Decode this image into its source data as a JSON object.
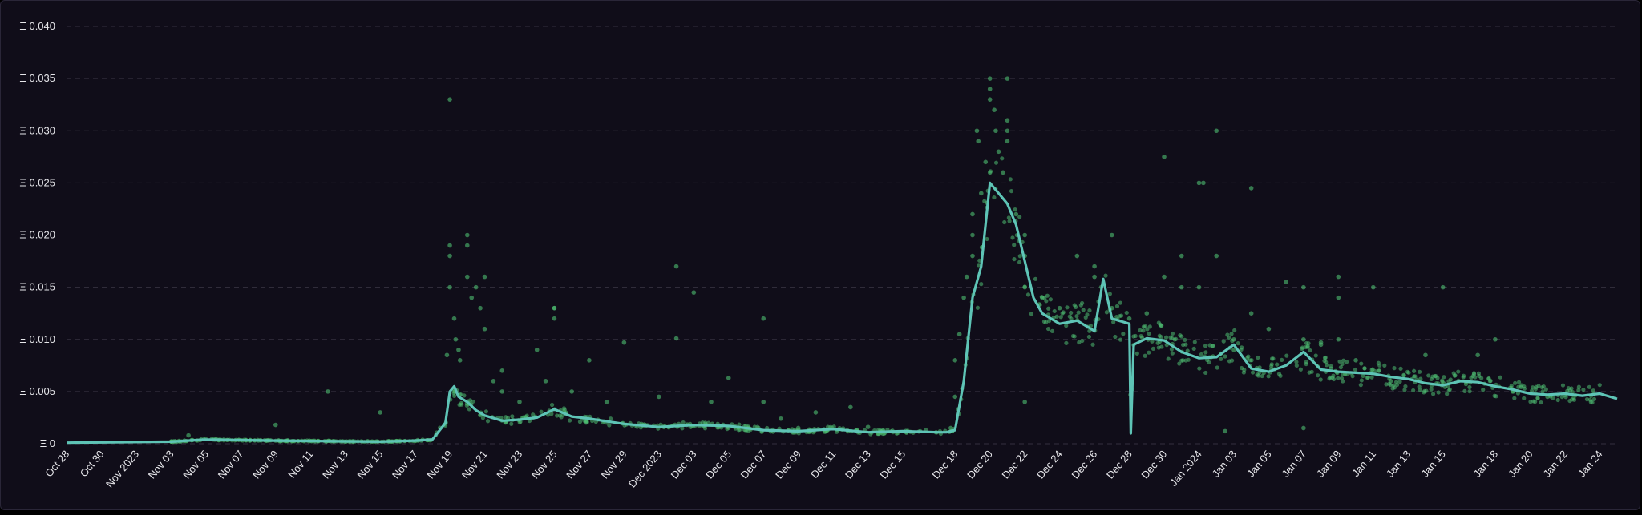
{
  "colors": {
    "background": "#100d19",
    "grid": "#34303f",
    "line": "#5ec4b6",
    "points": "#4fbf72",
    "text": "#e6e6ea"
  },
  "chart_data": {
    "type": "scatter",
    "title": "",
    "xlabel": "",
    "ylabel": "",
    "x_range": [
      "2023-10-28",
      "2024-01-25"
    ],
    "ylim": [
      0,
      0.04
    ],
    "y_unit_prefix": "Ξ",
    "grid": "horizontal dashed",
    "y_ticks": [
      "Ξ 0",
      "Ξ 0.005",
      "Ξ 0.010",
      "Ξ 0.015",
      "Ξ 0.020",
      "Ξ 0.025",
      "Ξ 0.030",
      "Ξ 0.035",
      "Ξ 0.040"
    ],
    "x_ticks": [
      {
        "label": "Oct 28",
        "date": "2023-10-28"
      },
      {
        "label": "Oct 30",
        "date": "2023-10-30"
      },
      {
        "label": "Nov 2023",
        "date": "2023-11-01"
      },
      {
        "label": "Nov 03",
        "date": "2023-11-03"
      },
      {
        "label": "Nov 05",
        "date": "2023-11-05"
      },
      {
        "label": "Nov 07",
        "date": "2023-11-07"
      },
      {
        "label": "Nov 09",
        "date": "2023-11-09"
      },
      {
        "label": "Nov 11",
        "date": "2023-11-11"
      },
      {
        "label": "Nov 13",
        "date": "2023-11-13"
      },
      {
        "label": "Nov 15",
        "date": "2023-11-15"
      },
      {
        "label": "Nov 17",
        "date": "2023-11-17"
      },
      {
        "label": "Nov 19",
        "date": "2023-11-19"
      },
      {
        "label": "Nov 21",
        "date": "2023-11-21"
      },
      {
        "label": "Nov 23",
        "date": "2023-11-23"
      },
      {
        "label": "Nov 25",
        "date": "2023-11-25"
      },
      {
        "label": "Nov 27",
        "date": "2023-11-27"
      },
      {
        "label": "Nov 29",
        "date": "2023-11-29"
      },
      {
        "label": "Dec 2023",
        "date": "2023-12-01"
      },
      {
        "label": "Dec 03",
        "date": "2023-12-03"
      },
      {
        "label": "Dec 05",
        "date": "2023-12-05"
      },
      {
        "label": "Dec 07",
        "date": "2023-12-07"
      },
      {
        "label": "Dec 09",
        "date": "2023-12-09"
      },
      {
        "label": "Dec 11",
        "date": "2023-12-11"
      },
      {
        "label": "Dec 13",
        "date": "2023-12-13"
      },
      {
        "label": "Dec 15",
        "date": "2023-12-15"
      },
      {
        "label": "Dec 18",
        "date": "2023-12-18"
      },
      {
        "label": "Dec 20",
        "date": "2023-12-20"
      },
      {
        "label": "Dec 22",
        "date": "2023-12-22"
      },
      {
        "label": "Dec 24",
        "date": "2023-12-24"
      },
      {
        "label": "Dec 26",
        "date": "2023-12-26"
      },
      {
        "label": "Dec 28",
        "date": "2023-12-28"
      },
      {
        "label": "Dec 30",
        "date": "2023-12-30"
      },
      {
        "label": "Jan 2024",
        "date": "2024-01-01"
      },
      {
        "label": "Jan 03",
        "date": "2024-01-03"
      },
      {
        "label": "Jan 05",
        "date": "2024-01-05"
      },
      {
        "label": "Jan 07",
        "date": "2024-01-07"
      },
      {
        "label": "Jan 09",
        "date": "2024-01-09"
      },
      {
        "label": "Jan 11",
        "date": "2024-01-11"
      },
      {
        "label": "Jan 13",
        "date": "2024-01-13"
      },
      {
        "label": "Jan 15",
        "date": "2024-01-15"
      },
      {
        "label": "Jan 18",
        "date": "2024-01-18"
      },
      {
        "label": "Jan 20",
        "date": "2024-01-20"
      },
      {
        "label": "Jan 22",
        "date": "2024-01-22"
      },
      {
        "label": "Jan 24",
        "date": "2024-01-24"
      }
    ],
    "series": [
      {
        "type": "line",
        "x": [
          "2023-10-28",
          "2023-11-03",
          "2023-11-05",
          "2023-11-09",
          "2023-11-15",
          "2023-11-17",
          "2023-11-18",
          "2023-11-18T18:00",
          "2023-11-19",
          "2023-11-19T06:00",
          "2023-11-19T12:00",
          "2023-11-20",
          "2023-11-20T12:00",
          "2023-11-21",
          "2023-11-22",
          "2023-11-23",
          "2023-11-24",
          "2023-11-25",
          "2023-11-26",
          "2023-11-27",
          "2023-11-29",
          "2023-12-01",
          "2023-12-03",
          "2023-12-05",
          "2023-12-07",
          "2023-12-09",
          "2023-12-11",
          "2023-12-13",
          "2023-12-15",
          "2023-12-17",
          "2023-12-17T12:00",
          "2023-12-18",
          "2023-12-18T12:00",
          "2023-12-19",
          "2023-12-19T12:00",
          "2023-12-20",
          "2023-12-20T12:00",
          "2023-12-21",
          "2023-12-21T12:00",
          "2023-12-22",
          "2023-12-22T12:00",
          "2023-12-23",
          "2023-12-24",
          "2023-12-25",
          "2023-12-26",
          "2023-12-26T12:00",
          "2023-12-27",
          "2023-12-28",
          "2023-12-28T02:00",
          "2023-12-28T06:00",
          "2023-12-29",
          "2023-12-30",
          "2023-12-31",
          "2024-01-01",
          "2024-01-02",
          "2024-01-03",
          "2024-01-04",
          "2024-01-05",
          "2024-01-06",
          "2024-01-07",
          "2024-01-08",
          "2024-01-09",
          "2024-01-10",
          "2024-01-11",
          "2024-01-12",
          "2024-01-13",
          "2024-01-14",
          "2024-01-15",
          "2024-01-16",
          "2024-01-17",
          "2024-01-18",
          "2024-01-19",
          "2024-01-20",
          "2024-01-21",
          "2024-01-22",
          "2024-01-23",
          "2024-01-24",
          "2024-01-25"
        ],
        "y": [
          0.0001,
          0.0002,
          0.0004,
          0.0003,
          0.0002,
          0.0003,
          0.0004,
          0.002,
          0.005,
          0.0055,
          0.0045,
          0.004,
          0.0032,
          0.0027,
          0.0022,
          0.0023,
          0.0025,
          0.0033,
          0.0026,
          0.0024,
          0.0019,
          0.0016,
          0.0018,
          0.0017,
          0.0013,
          0.0012,
          0.0014,
          0.0011,
          0.0012,
          0.0011,
          0.0011,
          0.0013,
          0.006,
          0.014,
          0.017,
          0.025,
          0.024,
          0.023,
          0.021,
          0.0175,
          0.014,
          0.0125,
          0.0115,
          0.0118,
          0.0108,
          0.0158,
          0.012,
          0.0115,
          0.001,
          0.0095,
          0.0101,
          0.0099,
          0.0088,
          0.0082,
          0.0083,
          0.0095,
          0.0072,
          0.0069,
          0.0075,
          0.0088,
          0.0071,
          0.0069,
          0.0068,
          0.0067,
          0.0064,
          0.0062,
          0.0058,
          0.0056,
          0.006,
          0.0059,
          0.0055,
          0.0052,
          0.0048,
          0.0047,
          0.0048,
          0.0046,
          0.0048,
          0.0043
        ]
      },
      {
        "type": "scatter",
        "points": [
          [
            "2023-11-04",
            0.0008
          ],
          [
            "2023-11-09",
            0.0018
          ],
          [
            "2023-11-12",
            0.005
          ],
          [
            "2023-11-15",
            0.003
          ],
          [
            "2023-11-18T20:00",
            0.0085
          ],
          [
            "2023-11-19",
            0.033
          ],
          [
            "2023-11-19",
            0.018
          ],
          [
            "2023-11-19",
            0.019
          ],
          [
            "2023-11-19",
            0.015
          ],
          [
            "2023-11-19T06:00",
            0.012
          ],
          [
            "2023-11-19T08:00",
            0.01
          ],
          [
            "2023-11-19T12:00",
            0.009
          ],
          [
            "2023-11-19T14:00",
            0.008
          ],
          [
            "2023-11-20",
            0.02
          ],
          [
            "2023-11-20",
            0.019
          ],
          [
            "2023-11-20",
            0.016
          ],
          [
            "2023-11-20T06:00",
            0.014
          ],
          [
            "2023-11-20T12:00",
            0.015
          ],
          [
            "2023-11-20T18:00",
            0.013
          ],
          [
            "2023-11-21",
            0.016
          ],
          [
            "2023-11-21",
            0.011
          ],
          [
            "2023-11-21T12:00",
            0.006
          ],
          [
            "2023-11-22",
            0.007
          ],
          [
            "2023-11-22",
            0.005
          ],
          [
            "2023-11-23",
            0.004
          ],
          [
            "2023-11-24",
            0.009
          ],
          [
            "2023-11-24T12:00",
            0.006
          ],
          [
            "2023-11-25",
            0.013
          ],
          [
            "2023-11-25",
            0.012
          ],
          [
            "2023-11-25",
            0.013
          ],
          [
            "2023-11-26",
            0.005
          ],
          [
            "2023-11-27",
            0.008
          ],
          [
            "2023-11-28",
            0.004
          ],
          [
            "2023-11-29",
            0.0097
          ],
          [
            "2023-12-01",
            0.0045
          ],
          [
            "2023-12-02",
            0.0101
          ],
          [
            "2023-12-02",
            0.017
          ],
          [
            "2023-12-03",
            0.0145
          ],
          [
            "2023-12-04",
            0.004
          ],
          [
            "2023-12-05",
            0.0063
          ],
          [
            "2023-12-07",
            0.004
          ],
          [
            "2023-12-07",
            0.012
          ],
          [
            "2023-12-08",
            0.0024
          ],
          [
            "2023-12-09",
            0.0015
          ],
          [
            "2023-12-10",
            0.003
          ],
          [
            "2023-12-12",
            0.0035
          ],
          [
            "2023-12-13",
            0.0016
          ],
          [
            "2023-12-17T18:00",
            0.0015
          ],
          [
            "2023-12-17T20:00",
            0.0012
          ],
          [
            "2023-12-18",
            0.0045
          ],
          [
            "2023-12-18",
            0.008
          ],
          [
            "2023-12-18T06:00",
            0.0105
          ],
          [
            "2023-12-18T12:00",
            0.014
          ],
          [
            "2023-12-18T16:00",
            0.016
          ],
          [
            "2023-12-19",
            0.02
          ],
          [
            "2023-12-19",
            0.022
          ],
          [
            "2023-12-19",
            0.018
          ],
          [
            "2023-12-19T06:00",
            0.03
          ],
          [
            "2023-12-19T08:00",
            0.029
          ],
          [
            "2023-12-19T12:00",
            0.024
          ],
          [
            "2023-12-19T18:00",
            0.027
          ],
          [
            "2023-12-20",
            0.035
          ],
          [
            "2023-12-20",
            0.034
          ],
          [
            "2023-12-20",
            0.033
          ],
          [
            "2023-12-20",
            0.026
          ],
          [
            "2023-12-20T06:00",
            0.032
          ],
          [
            "2023-12-20T08:00",
            0.03
          ],
          [
            "2023-12-20T12:00",
            0.028
          ],
          [
            "2023-12-20T18:00",
            0.026
          ],
          [
            "2023-12-21",
            0.035
          ],
          [
            "2023-12-21",
            0.031
          ],
          [
            "2023-12-21",
            0.03
          ],
          [
            "2023-12-21",
            0.029
          ],
          [
            "2023-12-21T12:00",
            0.022
          ],
          [
            "2023-12-22",
            0.02
          ],
          [
            "2023-12-22",
            0.018
          ],
          [
            "2023-12-22",
            0.015
          ],
          [
            "2023-12-22",
            0.004
          ],
          [
            "2023-12-23",
            0.014
          ],
          [
            "2023-12-24",
            0.013
          ],
          [
            "2023-12-25",
            0.018
          ],
          [
            "2023-12-26",
            0.017
          ],
          [
            "2023-12-26",
            0.016
          ],
          [
            "2023-12-27",
            0.02
          ],
          [
            "2023-12-27",
            0.013
          ],
          [
            "2023-12-28",
            0.012
          ],
          [
            "2023-12-29",
            0.0125
          ],
          [
            "2023-12-30",
            0.0275
          ],
          [
            "2023-12-30",
            0.016
          ],
          [
            "2023-12-31",
            0.018
          ],
          [
            "2023-12-31",
            0.015
          ],
          [
            "2024-01-01",
            0.025
          ],
          [
            "2024-01-01T06:00",
            0.025
          ],
          [
            "2024-01-01",
            0.015
          ],
          [
            "2024-01-02",
            0.03
          ],
          [
            "2024-01-02",
            0.018
          ],
          [
            "2024-01-02T12:00",
            0.0012
          ],
          [
            "2024-01-03",
            0.01
          ],
          [
            "2024-01-03",
            0.009
          ],
          [
            "2024-01-04",
            0.0245
          ],
          [
            "2024-01-04",
            0.0125
          ],
          [
            "2024-01-05",
            0.011
          ],
          [
            "2024-01-06",
            0.0155
          ],
          [
            "2024-01-07",
            0.0015
          ],
          [
            "2024-01-07",
            0.015
          ],
          [
            "2024-01-07",
            0.01
          ],
          [
            "2024-01-08",
            0.0097
          ],
          [
            "2024-01-08",
            0.0095
          ],
          [
            "2024-01-09",
            0.016
          ],
          [
            "2024-01-09",
            0.014
          ],
          [
            "2024-01-09",
            0.01
          ],
          [
            "2024-01-10",
            0.008
          ],
          [
            "2024-01-11",
            0.015
          ],
          [
            "2024-01-12",
            0.006
          ],
          [
            "2024-01-14",
            0.0085
          ],
          [
            "2024-01-15",
            0.015
          ],
          [
            "2024-01-17",
            0.0085
          ],
          [
            "2024-01-18",
            0.01
          ],
          [
            "2024-01-19",
            0.005
          ],
          [
            "2024-01-21",
            0.0045
          ]
        ]
      }
    ]
  }
}
